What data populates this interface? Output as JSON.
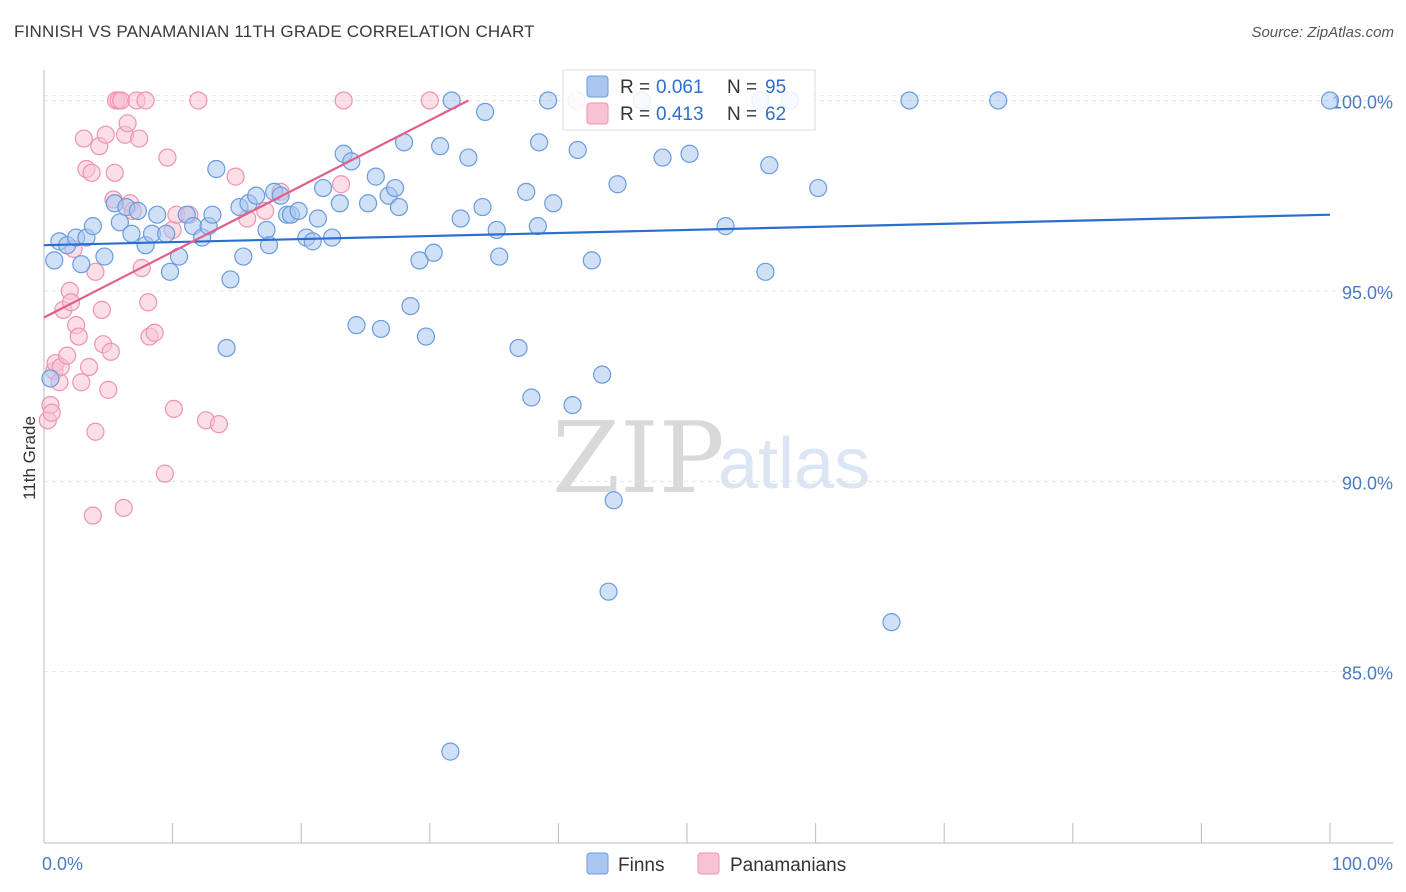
{
  "title": "FINNISH VS PANAMANIAN 11TH GRADE CORRELATION CHART",
  "source": "Source: ZipAtlas.com",
  "watermark": {
    "zip": "ZIP",
    "atlas": "atlas"
  },
  "legend": {
    "items": [
      {
        "r_label": "R = ",
        "r_value": "0.061",
        "n_label": "N = ",
        "n_value": "95"
      },
      {
        "r_label": "R = ",
        "r_value": "0.413",
        "n_label": "N = ",
        "n_value": "62"
      }
    ]
  },
  "bottom_legend": [
    "Finns",
    "Panamanians"
  ],
  "colors": {
    "finns": "#6a9be0",
    "finns_fill": "#a9c6ef",
    "finns_line": "#2b6fce",
    "pan": "#ef93b1",
    "pan_fill": "#f7c2d2",
    "pan_line": "#e0608a"
  },
  "chart_data": {
    "type": "scatter",
    "title": "FINNISH VS PANAMANIAN 11TH GRADE CORRELATION CHART",
    "xlabel": "",
    "ylabel": "11th Grade",
    "xlim": [
      0,
      100
    ],
    "ylim": [
      80.5,
      100.8
    ],
    "x_tick_labels": [
      "0.0%",
      "100.0%"
    ],
    "y_ticks": [
      85,
      90,
      95,
      100
    ],
    "y_tick_labels": [
      "85.0%",
      "90.0%",
      "95.0%",
      "100.0%"
    ],
    "series": [
      {
        "name": "Finns",
        "r": 0.061,
        "n": 95,
        "trend": {
          "x0": 0,
          "y0": 96.2,
          "x1": 100,
          "y1": 97.0
        },
        "points": [
          [
            0.8,
            95.8
          ],
          [
            1.2,
            96.3
          ],
          [
            1.8,
            96.2
          ],
          [
            2.5,
            96.4
          ],
          [
            2.9,
            95.7
          ],
          [
            3.3,
            96.4
          ],
          [
            3.8,
            96.7
          ],
          [
            4.7,
            95.9
          ],
          [
            5.5,
            97.3
          ],
          [
            5.9,
            96.8
          ],
          [
            6.4,
            97.2
          ],
          [
            6.8,
            96.5
          ],
          [
            7.3,
            97.1
          ],
          [
            7.9,
            96.2
          ],
          [
            8.4,
            96.5
          ],
          [
            8.8,
            97.0
          ],
          [
            9.5,
            96.5
          ],
          [
            9.8,
            95.5
          ],
          [
            10.5,
            95.9
          ],
          [
            11.1,
            97.0
          ],
          [
            11.6,
            96.7
          ],
          [
            12.3,
            96.4
          ],
          [
            12.8,
            96.7
          ],
          [
            13.1,
            97.0
          ],
          [
            13.4,
            98.2
          ],
          [
            14.2,
            93.5
          ],
          [
            14.5,
            95.3
          ],
          [
            15.2,
            97.2
          ],
          [
            15.5,
            95.9
          ],
          [
            15.9,
            97.3
          ],
          [
            16.5,
            97.5
          ],
          [
            17.3,
            96.6
          ],
          [
            17.5,
            96.2
          ],
          [
            17.9,
            97.6
          ],
          [
            18.4,
            97.5
          ],
          [
            18.9,
            97.0
          ],
          [
            19.2,
            97.0
          ],
          [
            19.8,
            97.1
          ],
          [
            20.4,
            96.4
          ],
          [
            20.9,
            96.3
          ],
          [
            21.3,
            96.9
          ],
          [
            21.7,
            97.7
          ],
          [
            22.4,
            96.4
          ],
          [
            23.0,
            97.3
          ],
          [
            23.3,
            98.6
          ],
          [
            23.9,
            98.4
          ],
          [
            24.3,
            94.1
          ],
          [
            25.2,
            97.3
          ],
          [
            25.8,
            98.0
          ],
          [
            26.2,
            94.0
          ],
          [
            26.8,
            97.5
          ],
          [
            27.3,
            97.7
          ],
          [
            27.6,
            97.2
          ],
          [
            28.0,
            98.9
          ],
          [
            28.5,
            94.6
          ],
          [
            29.2,
            95.8
          ],
          [
            29.7,
            93.8
          ],
          [
            30.3,
            96.0
          ],
          [
            30.8,
            98.8
          ],
          [
            31.7,
            100.0
          ],
          [
            32.4,
            96.9
          ],
          [
            33.0,
            98.5
          ],
          [
            34.1,
            97.2
          ],
          [
            34.3,
            99.7
          ],
          [
            35.2,
            96.6
          ],
          [
            35.4,
            95.9
          ],
          [
            36.9,
            93.5
          ],
          [
            37.5,
            97.6
          ],
          [
            37.9,
            92.2
          ],
          [
            38.4,
            96.7
          ],
          [
            38.5,
            98.9
          ],
          [
            39.2,
            100.0
          ],
          [
            39.6,
            97.3
          ],
          [
            41.1,
            92.0
          ],
          [
            41.5,
            98.7
          ],
          [
            42.6,
            95.8
          ],
          [
            43.4,
            92.8
          ],
          [
            43.9,
            87.1
          ],
          [
            44.3,
            89.5
          ],
          [
            44.6,
            97.8
          ],
          [
            46.5,
            100.0
          ],
          [
            48.1,
            98.5
          ],
          [
            50.2,
            98.6
          ],
          [
            53.0,
            96.7
          ],
          [
            55.7,
            100.0
          ],
          [
            56.1,
            95.5
          ],
          [
            56.4,
            98.3
          ],
          [
            58.0,
            100.0
          ],
          [
            60.2,
            97.7
          ],
          [
            65.9,
            86.3
          ],
          [
            67.3,
            100.0
          ],
          [
            74.2,
            100.0
          ],
          [
            100.0,
            100.0
          ],
          [
            31.6,
            82.9
          ],
          [
            0.5,
            92.7
          ]
        ]
      },
      {
        "name": "Panamanians",
        "r": 0.413,
        "n": 62,
        "trend": {
          "x0": 0,
          "y0": 94.3,
          "x1": 33,
          "y1": 100.0
        },
        "points": [
          [
            0.3,
            91.6
          ],
          [
            0.5,
            92.0
          ],
          [
            0.6,
            91.8
          ],
          [
            0.8,
            92.9
          ],
          [
            0.9,
            93.1
          ],
          [
            1.2,
            92.6
          ],
          [
            1.3,
            93.0
          ],
          [
            1.5,
            94.5
          ],
          [
            1.8,
            93.3
          ],
          [
            2.0,
            95.0
          ],
          [
            2.1,
            94.7
          ],
          [
            2.3,
            96.1
          ],
          [
            2.5,
            94.1
          ],
          [
            2.7,
            93.8
          ],
          [
            2.9,
            92.6
          ],
          [
            3.1,
            99.0
          ],
          [
            3.3,
            98.2
          ],
          [
            3.5,
            93.0
          ],
          [
            3.7,
            98.1
          ],
          [
            4.0,
            95.5
          ],
          [
            3.8,
            89.1
          ],
          [
            4.0,
            91.3
          ],
          [
            4.3,
            98.8
          ],
          [
            4.5,
            94.5
          ],
          [
            4.6,
            93.6
          ],
          [
            4.8,
            99.1
          ],
          [
            5.0,
            92.4
          ],
          [
            5.2,
            93.4
          ],
          [
            5.4,
            97.4
          ],
          [
            5.5,
            98.1
          ],
          [
            5.6,
            100.0
          ],
          [
            5.8,
            100.0
          ],
          [
            6.0,
            100.0
          ],
          [
            6.2,
            89.3
          ],
          [
            6.3,
            99.1
          ],
          [
            6.5,
            99.4
          ],
          [
            6.7,
            97.3
          ],
          [
            6.9,
            97.1
          ],
          [
            7.2,
            100.0
          ],
          [
            7.4,
            99.0
          ],
          [
            7.6,
            95.6
          ],
          [
            7.9,
            100.0
          ],
          [
            8.1,
            94.7
          ],
          [
            8.2,
            93.8
          ],
          [
            8.6,
            93.9
          ],
          [
            9.4,
            90.2
          ],
          [
            9.6,
            98.5
          ],
          [
            10.0,
            96.6
          ],
          [
            10.1,
            91.9
          ],
          [
            10.3,
            97.0
          ],
          [
            11.3,
            97.0
          ],
          [
            12.0,
            100.0
          ],
          [
            12.6,
            91.6
          ],
          [
            13.6,
            91.5
          ],
          [
            14.9,
            98.0
          ],
          [
            15.8,
            96.9
          ],
          [
            17.2,
            97.1
          ],
          [
            18.4,
            97.6
          ],
          [
            23.1,
            97.8
          ],
          [
            23.3,
            100.0
          ],
          [
            30.0,
            100.0
          ],
          [
            41.4,
            100.0
          ]
        ]
      }
    ]
  }
}
